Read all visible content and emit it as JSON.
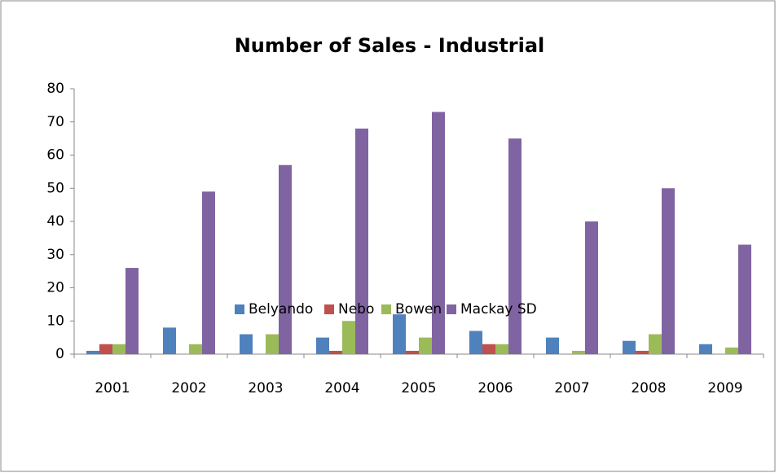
{
  "chart_data": {
    "type": "bar",
    "title": "Number of Sales - Industrial",
    "categories": [
      "2001",
      "2002",
      "2003",
      "2004",
      "2005",
      "2006",
      "2007",
      "2008",
      "2009"
    ],
    "series": [
      {
        "name": "Belyando",
        "color": "#4f81bd",
        "values": [
          1,
          8,
          6,
          5,
          12,
          7,
          5,
          4,
          3
        ]
      },
      {
        "name": "Nebo",
        "color": "#c0504d",
        "values": [
          3,
          0,
          0,
          1,
          1,
          3,
          0,
          1,
          0
        ]
      },
      {
        "name": "Bowen",
        "color": "#9bbb59",
        "values": [
          3,
          3,
          6,
          10,
          5,
          3,
          1,
          6,
          2
        ]
      },
      {
        "name": "Mackay SD",
        "color": "#8064a2",
        "values": [
          26,
          49,
          57,
          68,
          73,
          65,
          40,
          50,
          33
        ]
      }
    ],
    "ylim": [
      0,
      80
    ],
    "yticks": [
      0,
      10,
      20,
      30,
      40,
      50,
      60,
      70,
      80
    ],
    "legend": "bottom"
  }
}
